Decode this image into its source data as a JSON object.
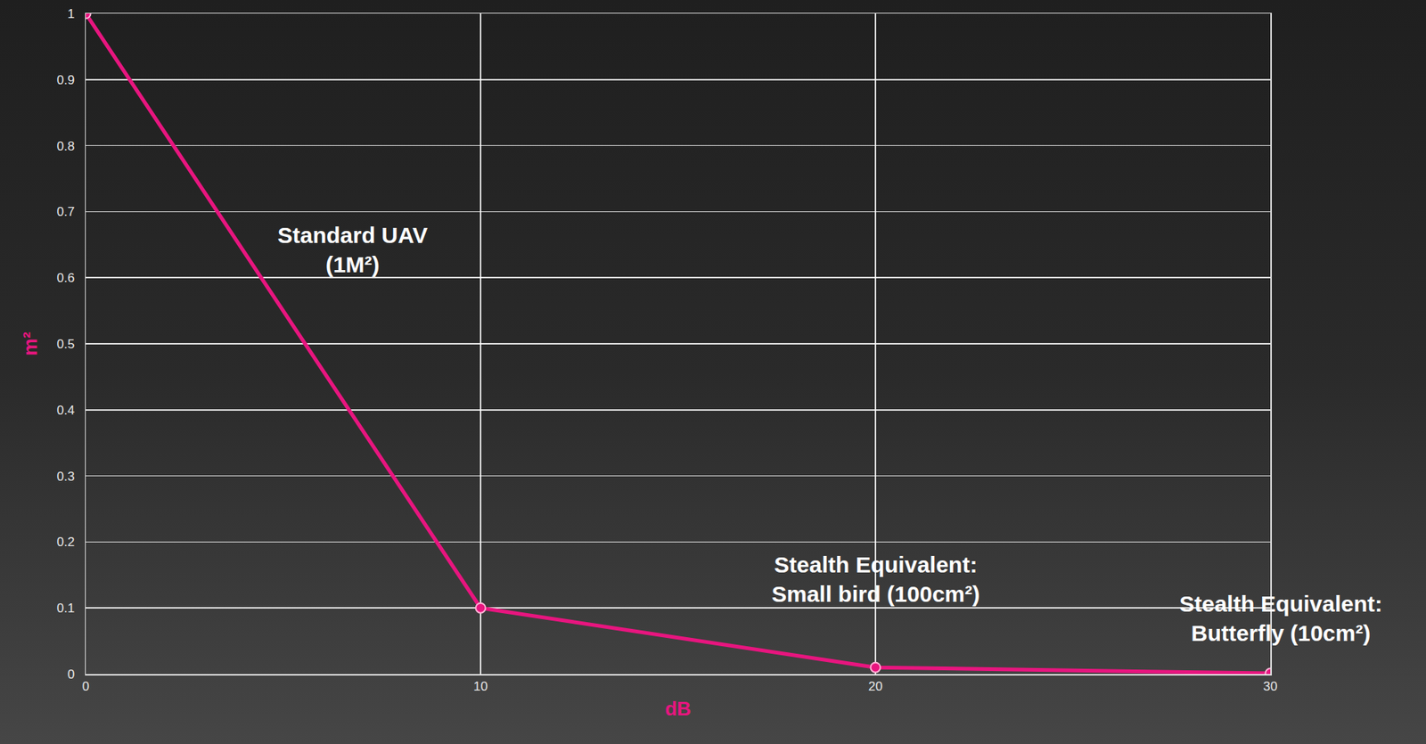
{
  "chart_data": {
    "type": "line",
    "x": [
      0,
      10,
      20,
      30
    ],
    "values": [
      1,
      0.1,
      0.01,
      0.001
    ],
    "color": "#e8157f",
    "marker": "circle",
    "line_style": "solid",
    "xlabel": "dB",
    "ylabel": "m²",
    "xlim": [
      0,
      30
    ],
    "xticks": [
      0,
      10,
      20,
      30
    ],
    "ylim": [
      0,
      1
    ],
    "yticks": [
      0,
      0.1,
      0.2,
      0.3,
      0.4,
      0.5,
      0.6,
      0.7,
      0.8,
      0.9,
      1
    ],
    "grid": true,
    "annotations": [
      {
        "text": "Standard UAV\n(1M²)",
        "x": 0
      },
      {
        "text": "Stealth Equivalent:\nSmall bird (100cm²)",
        "x": 20
      },
      {
        "text": "Stealth Equivalent:\nButterfly (10cm²)",
        "x": 30
      }
    ]
  }
}
